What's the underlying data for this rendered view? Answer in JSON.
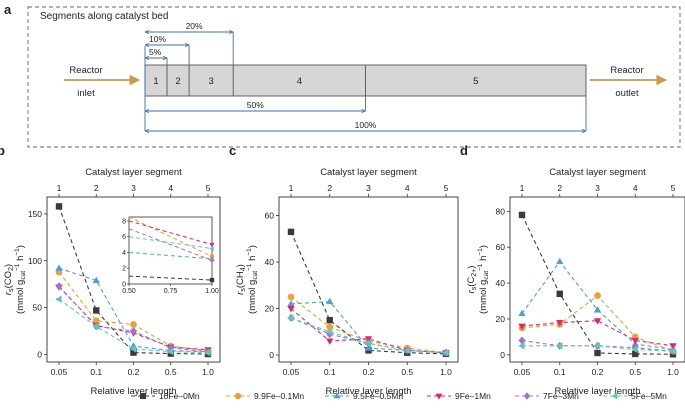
{
  "colors": {
    "series": [
      "#3a3a3a",
      "#f0a030",
      "#4aa0d8",
      "#d82870",
      "#a070d0",
      "#60c8b8"
    ],
    "arrow": "#c89a4a",
    "blue": "#3b6fb0",
    "bar_fill": "#d6d6d6"
  },
  "markers": [
    "square",
    "circle",
    "triangle-up",
    "triangle-down",
    "diamond",
    "triangle-left"
  ],
  "legend": [
    "10Fe–0Mn",
    "9.9Fe–0.1Mn",
    "9.5Fe–0.5Mn",
    "9Fe–1Mn",
    "7Fe–3Mn",
    "5Fe–5Mn"
  ],
  "panel_a": {
    "label": "a",
    "title": "Segments along catalyst bed",
    "inlet_top": "Reactor",
    "inlet_bottom": "inlet",
    "outlet_top": "Reactor",
    "outlet_bottom": "outlet",
    "segments": [
      "1",
      "2",
      "3",
      "4",
      "5"
    ],
    "boundaries_percent": [
      5,
      10,
      20,
      50,
      100
    ],
    "markers": [
      {
        "label": "5%",
        "value": 5
      },
      {
        "label": "10%",
        "value": 10
      },
      {
        "label": "20%",
        "value": 20
      },
      {
        "label": "50%",
        "value": 50
      },
      {
        "label": "100%",
        "value": 100
      }
    ]
  },
  "chart_data": [
    {
      "type": "line",
      "panel": "b",
      "top_axis_label": "Catalyst layer segment",
      "top_ticks": [
        "1",
        "2",
        "3",
        "4",
        "5"
      ],
      "xlabel": "Relative layer length",
      "x_ticks": [
        "0.05",
        "0.1",
        "0.2",
        "0.5",
        "1.0"
      ],
      "y_ticks": [
        0,
        50,
        100,
        150
      ],
      "ylim": [
        -8,
        168
      ],
      "y_main": "r_s(CO_2)",
      "y_units": "(mmol g_cat^-1 h^-1)",
      "series": [
        {
          "values": [
            158,
            47,
            2,
            1,
            0.5
          ]
        },
        {
          "values": [
            88,
            36,
            32,
            9,
            4
          ]
        },
        {
          "values": [
            92,
            79,
            9,
            4,
            3
          ]
        },
        {
          "values": [
            72,
            31,
            23,
            8,
            5
          ]
        },
        {
          "values": [
            73,
            30,
            25,
            7,
            3
          ]
        },
        {
          "values": [
            59,
            30,
            6,
            3,
            2
          ]
        }
      ],
      "inset": {
        "x_ticks": [
          "0.50",
          "0.75",
          "1.00"
        ],
        "x": [
          0.5,
          1.0
        ],
        "xlim": [
          0.5,
          1.0
        ],
        "y_ticks": [
          0,
          2,
          4,
          6,
          8
        ],
        "ylim": [
          0,
          8.5
        ],
        "series": [
          {
            "values": [
              1,
              0.5
            ]
          },
          {
            "values": [
              8.5,
              3.5
            ]
          },
          {
            "values": [
              4,
              3.2
            ]
          },
          {
            "values": [
              8,
              5
            ]
          },
          {
            "values": [
              7,
              3
            ]
          },
          {
            "values": [
              6,
              4.5
            ]
          }
        ]
      }
    },
    {
      "type": "line",
      "panel": "c",
      "top_axis_label": "Catalyst layer segment",
      "top_ticks": [
        "1",
        "2",
        "3",
        "4",
        "5"
      ],
      "xlabel": "Relative layer length",
      "x_ticks": [
        "0.05",
        "0.1",
        "0.2",
        "0.5",
        "1.0"
      ],
      "y_ticks": [
        0,
        20,
        40,
        60
      ],
      "ylim": [
        -3,
        68
      ],
      "y_main": "r_s(CH_4)",
      "y_units": "(mmol g_cat^-1 h^-1)",
      "series": [
        {
          "values": [
            53,
            15,
            2,
            1,
            0.5
          ]
        },
        {
          "values": [
            25,
            12,
            6,
            3,
            1
          ]
        },
        {
          "values": [
            22,
            23,
            3,
            2,
            1
          ]
        },
        {
          "values": [
            20,
            6,
            7,
            2,
            1
          ]
        },
        {
          "values": [
            16,
            9,
            5,
            2,
            1
          ]
        },
        {
          "values": [
            16,
            10,
            5,
            2,
            1
          ]
        }
      ]
    },
    {
      "type": "line",
      "panel": "d",
      "top_axis_label": "Catalyst layer segment",
      "top_ticks": [
        "1",
        "2",
        "3",
        "4",
        "5"
      ],
      "xlabel": "Relative layer length",
      "x_ticks": [
        "0.05",
        "0.1",
        "0.2",
        "0.5",
        "1.0"
      ],
      "y_ticks": [
        0,
        20,
        40,
        60,
        80
      ],
      "ylim": [
        -4,
        88
      ],
      "y_main": "r_s(C_2+)",
      "y_units": "(mmol g_cat^-1 h^-1)",
      "series": [
        {
          "values": [
            78,
            34,
            1,
            0.5,
            0.3
          ]
        },
        {
          "values": [
            15,
            17,
            33,
            10,
            2
          ]
        },
        {
          "values": [
            23,
            52,
            25,
            6,
            3
          ]
        },
        {
          "values": [
            16,
            18,
            19,
            8,
            5
          ]
        },
        {
          "values": [
            8,
            5,
            5,
            4,
            2
          ]
        },
        {
          "values": [
            5,
            5,
            5,
            3,
            2
          ]
        }
      ]
    }
  ]
}
